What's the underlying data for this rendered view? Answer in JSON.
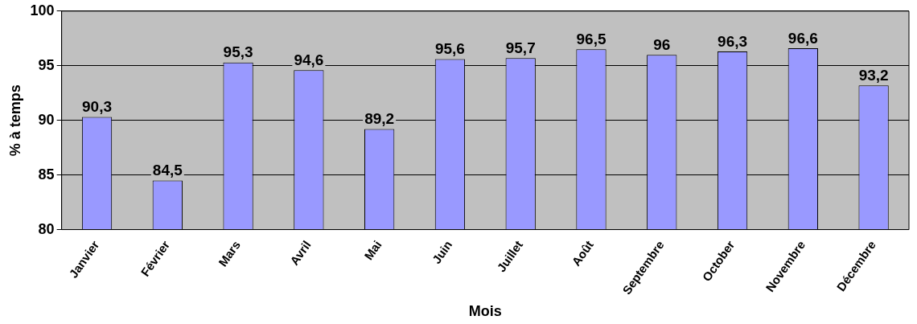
{
  "chart_data": {
    "type": "bar",
    "xlabel": "Mois",
    "ylabel": "% à temps",
    "categories": [
      "Janvier",
      "Février",
      "Mars",
      "Avril",
      "Mai",
      "Juin",
      "Juillet",
      "Août",
      "Septembre",
      "October",
      "Novembre",
      "Décembre"
    ],
    "values": [
      90.3,
      84.5,
      95.3,
      94.6,
      89.2,
      95.6,
      95.7,
      96.5,
      96,
      96.3,
      96.6,
      93.2
    ],
    "value_labels": [
      "90,3",
      "84,5",
      "95,3",
      "94,6",
      "89,2",
      "95,6",
      "95,7",
      "96,5",
      "96",
      "96,3",
      "96,6",
      "93,2"
    ],
    "color": "#9999ff",
    "ylim": [
      80,
      100
    ],
    "yticks": [
      80,
      85,
      90,
      95,
      100
    ],
    "grid": "y",
    "legend": false
  }
}
